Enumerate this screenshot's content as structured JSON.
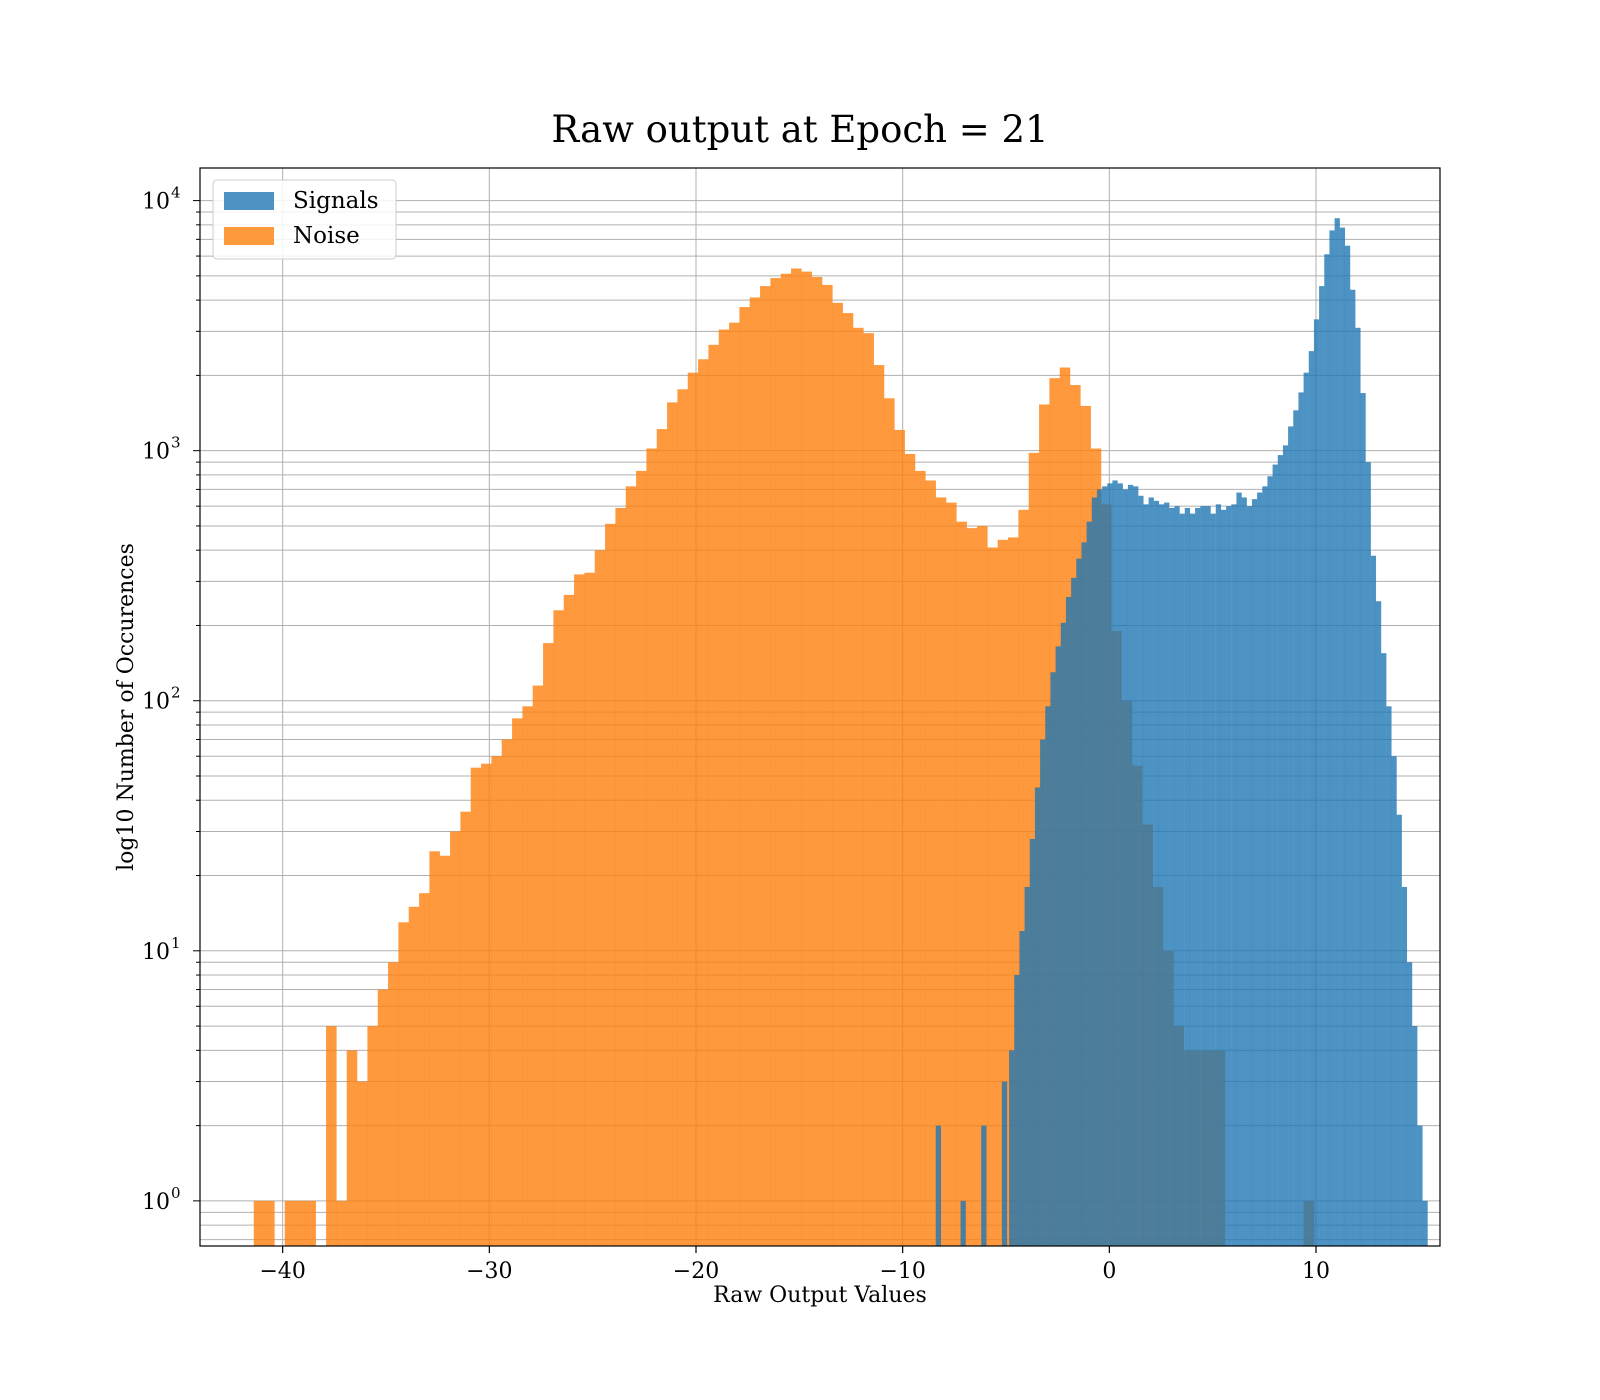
{
  "chart_data": {
    "type": "bar",
    "title": "Raw output at Epoch = 21",
    "xlabel": "Raw Output Values",
    "ylabel": "log10 Number of Occurences",
    "yscale": "log",
    "xlim": [
      -44,
      16
    ],
    "ylim": [
      0.66,
      13500
    ],
    "xticks": [
      -40,
      -30,
      -20,
      -10,
      0,
      10
    ],
    "xtick_labels": [
      "−40",
      "−30",
      "−20",
      "−10",
      "0",
      "10"
    ],
    "yticks": [
      {
        "value": 1,
        "base": "10",
        "exp": "0"
      },
      {
        "value": 10,
        "base": "10",
        "exp": "1"
      },
      {
        "value": 100,
        "base": "10",
        "exp": "2"
      },
      {
        "value": 1000,
        "base": "10",
        "exp": "3"
      },
      {
        "value": 10000,
        "base": "10",
        "exp": "4"
      }
    ],
    "grid": true,
    "legend_position": "top-left",
    "series": [
      {
        "name": "Noise",
        "color": "#ff7f0e",
        "bin_width": 0.51,
        "bins": [
          [
            -41.4,
            1
          ],
          [
            -40.9,
            1
          ],
          [
            -39.9,
            1
          ],
          [
            -39.4,
            1
          ],
          [
            -38.9,
            1
          ],
          [
            -37.9,
            5
          ],
          [
            -37.4,
            1
          ],
          [
            -36.9,
            4
          ],
          [
            -36.4,
            3
          ],
          [
            -35.9,
            5
          ],
          [
            -35.4,
            7
          ],
          [
            -34.9,
            9
          ],
          [
            -34.4,
            13
          ],
          [
            -33.9,
            15
          ],
          [
            -33.4,
            17
          ],
          [
            -32.9,
            25
          ],
          [
            -32.4,
            24
          ],
          [
            -31.9,
            30
          ],
          [
            -31.4,
            36
          ],
          [
            -30.9,
            54
          ],
          [
            -30.4,
            56
          ],
          [
            -29.9,
            60
          ],
          [
            -29.4,
            70
          ],
          [
            -28.9,
            85
          ],
          [
            -28.4,
            95
          ],
          [
            -27.9,
            115
          ],
          [
            -27.4,
            170
          ],
          [
            -26.9,
            230
          ],
          [
            -26.4,
            265
          ],
          [
            -25.9,
            320
          ],
          [
            -25.4,
            325
          ],
          [
            -24.9,
            400
          ],
          [
            -24.4,
            510
          ],
          [
            -23.9,
            590
          ],
          [
            -23.4,
            720
          ],
          [
            -22.9,
            830
          ],
          [
            -22.4,
            1020
          ],
          [
            -21.9,
            1220
          ],
          [
            -21.4,
            1560
          ],
          [
            -20.9,
            1760
          ],
          [
            -20.4,
            2050
          ],
          [
            -19.9,
            2320
          ],
          [
            -19.4,
            2650
          ],
          [
            -18.9,
            3050
          ],
          [
            -18.4,
            3250
          ],
          [
            -17.9,
            3750
          ],
          [
            -17.4,
            4100
          ],
          [
            -16.9,
            4550
          ],
          [
            -16.4,
            4900
          ],
          [
            -15.9,
            5100
          ],
          [
            -15.4,
            5350
          ],
          [
            -14.9,
            5200
          ],
          [
            -14.4,
            4950
          ],
          [
            -13.9,
            4600
          ],
          [
            -13.4,
            3900
          ],
          [
            -12.9,
            3550
          ],
          [
            -12.4,
            3100
          ],
          [
            -11.9,
            2950
          ],
          [
            -11.4,
            2200
          ],
          [
            -10.9,
            1620
          ],
          [
            -10.4,
            1210
          ],
          [
            -9.9,
            970
          ],
          [
            -9.4,
            830
          ],
          [
            -8.9,
            760
          ],
          [
            -8.4,
            650
          ],
          [
            -7.9,
            620
          ],
          [
            -7.4,
            520
          ],
          [
            -6.9,
            490
          ],
          [
            -6.4,
            500
          ],
          [
            -5.9,
            410
          ],
          [
            -5.4,
            440
          ],
          [
            -4.9,
            450
          ],
          [
            -4.4,
            580
          ],
          [
            -3.9,
            980
          ],
          [
            -3.4,
            1530
          ],
          [
            -2.9,
            1950
          ],
          [
            -2.4,
            2150
          ],
          [
            -1.9,
            1830
          ],
          [
            -1.4,
            1510
          ],
          [
            -0.9,
            1020
          ],
          [
            -0.4,
            610
          ],
          [
            0.1,
            190
          ],
          [
            0.6,
            100
          ],
          [
            1.1,
            55
          ],
          [
            1.6,
            32
          ],
          [
            2.1,
            18
          ],
          [
            2.6,
            10
          ],
          [
            3.1,
            5
          ],
          [
            3.6,
            4
          ],
          [
            4.1,
            4
          ],
          [
            4.6,
            4
          ],
          [
            5.1,
            4
          ],
          [
            9.4,
            1
          ]
        ]
      },
      {
        "name": "Signals",
        "color": "#1f77b4",
        "bin_width": 0.255,
        "bins": [
          [
            -8.4,
            2
          ],
          [
            -7.2,
            1
          ],
          [
            -6.2,
            2
          ],
          [
            -5.2,
            3
          ],
          [
            -4.85,
            4
          ],
          [
            -4.6,
            8
          ],
          [
            -4.35,
            12
          ],
          [
            -4.1,
            18
          ],
          [
            -3.85,
            28
          ],
          [
            -3.6,
            45
          ],
          [
            -3.35,
            70
          ],
          [
            -3.1,
            95
          ],
          [
            -2.85,
            130
          ],
          [
            -2.6,
            165
          ],
          [
            -2.35,
            205
          ],
          [
            -2.1,
            260
          ],
          [
            -1.85,
            310
          ],
          [
            -1.6,
            370
          ],
          [
            -1.35,
            430
          ],
          [
            -1.1,
            520
          ],
          [
            -0.85,
            650
          ],
          [
            -0.6,
            700
          ],
          [
            -0.35,
            720
          ],
          [
            -0.1,
            740
          ],
          [
            0.15,
            760
          ],
          [
            0.4,
            740
          ],
          [
            0.65,
            700
          ],
          [
            0.9,
            730
          ],
          [
            1.15,
            720
          ],
          [
            1.4,
            660
          ],
          [
            1.65,
            610
          ],
          [
            1.9,
            650
          ],
          [
            2.15,
            630
          ],
          [
            2.4,
            610
          ],
          [
            2.65,
            620
          ],
          [
            2.9,
            590
          ],
          [
            3.15,
            600
          ],
          [
            3.4,
            560
          ],
          [
            3.65,
            590
          ],
          [
            3.9,
            560
          ],
          [
            4.15,
            590
          ],
          [
            4.4,
            600
          ],
          [
            4.65,
            600
          ],
          [
            4.9,
            560
          ],
          [
            5.15,
            610
          ],
          [
            5.4,
            580
          ],
          [
            5.65,
            600
          ],
          [
            5.9,
            610
          ],
          [
            6.15,
            680
          ],
          [
            6.4,
            650
          ],
          [
            6.65,
            600
          ],
          [
            6.9,
            640
          ],
          [
            7.15,
            680
          ],
          [
            7.4,
            720
          ],
          [
            7.65,
            790
          ],
          [
            7.9,
            880
          ],
          [
            8.15,
            960
          ],
          [
            8.4,
            1050
          ],
          [
            8.65,
            1250
          ],
          [
            8.9,
            1450
          ],
          [
            9.15,
            1710
          ],
          [
            9.4,
            2050
          ],
          [
            9.65,
            2500
          ],
          [
            9.9,
            3350
          ],
          [
            10.15,
            4550
          ],
          [
            10.4,
            6100
          ],
          [
            10.65,
            7600
          ],
          [
            10.9,
            8500
          ],
          [
            11.15,
            7800
          ],
          [
            11.4,
            6600
          ],
          [
            11.65,
            4400
          ],
          [
            11.9,
            3100
          ],
          [
            12.15,
            1700
          ],
          [
            12.4,
            900
          ],
          [
            12.65,
            380
          ],
          [
            12.9,
            250
          ],
          [
            13.15,
            155
          ],
          [
            13.4,
            95
          ],
          [
            13.65,
            60
          ],
          [
            13.9,
            35
          ],
          [
            14.15,
            18
          ],
          [
            14.4,
            9
          ],
          [
            14.65,
            5
          ],
          [
            14.9,
            2
          ],
          [
            15.15,
            1
          ]
        ]
      }
    ]
  }
}
